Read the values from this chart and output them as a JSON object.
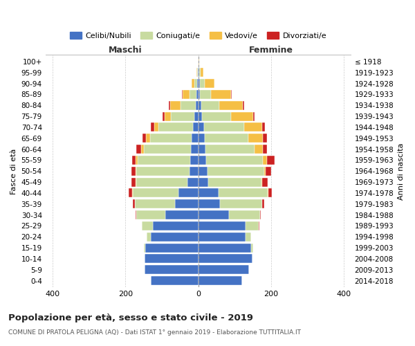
{
  "age_groups": [
    "0-4",
    "5-9",
    "10-14",
    "15-19",
    "20-24",
    "25-29",
    "30-34",
    "35-39",
    "40-44",
    "45-49",
    "50-54",
    "55-59",
    "60-64",
    "65-69",
    "70-74",
    "75-79",
    "80-84",
    "85-89",
    "90-94",
    "95-99",
    "100+"
  ],
  "birth_years": [
    "2014-2018",
    "2009-2013",
    "2004-2008",
    "1999-2003",
    "1994-1998",
    "1989-1993",
    "1984-1988",
    "1979-1983",
    "1974-1978",
    "1969-1973",
    "1964-1968",
    "1959-1963",
    "1954-1958",
    "1949-1953",
    "1944-1948",
    "1939-1943",
    "1934-1938",
    "1929-1933",
    "1924-1928",
    "1919-1923",
    "≤ 1918"
  ],
  "maschi_celibi": [
    130,
    148,
    148,
    145,
    130,
    125,
    90,
    65,
    55,
    30,
    25,
    22,
    20,
    18,
    15,
    10,
    8,
    5,
    3,
    1,
    0
  ],
  "maschi_coniugati": [
    0,
    0,
    0,
    5,
    12,
    30,
    80,
    110,
    125,
    140,
    145,
    145,
    130,
    115,
    95,
    65,
    40,
    20,
    8,
    2,
    0
  ],
  "maschi_vedovi": [
    0,
    0,
    0,
    0,
    0,
    0,
    0,
    0,
    1,
    2,
    3,
    5,
    8,
    10,
    12,
    18,
    30,
    18,
    8,
    2,
    0
  ],
  "maschi_divorziati": [
    0,
    0,
    0,
    0,
    0,
    0,
    2,
    5,
    10,
    12,
    10,
    10,
    12,
    10,
    8,
    5,
    3,
    2,
    0,
    0,
    0
  ],
  "femmine_celibi": [
    120,
    140,
    148,
    145,
    130,
    130,
    85,
    60,
    55,
    28,
    25,
    22,
    20,
    18,
    15,
    10,
    8,
    5,
    5,
    2,
    0
  ],
  "femmine_coniugati": [
    0,
    0,
    0,
    5,
    15,
    35,
    85,
    115,
    135,
    145,
    155,
    155,
    135,
    120,
    110,
    80,
    50,
    30,
    12,
    4,
    0
  ],
  "femmine_vedovi": [
    0,
    0,
    0,
    0,
    0,
    0,
    0,
    0,
    2,
    3,
    5,
    12,
    22,
    40,
    50,
    60,
    65,
    55,
    28,
    8,
    2
  ],
  "femmine_divorziati": [
    0,
    0,
    0,
    0,
    0,
    2,
    2,
    5,
    10,
    15,
    15,
    20,
    12,
    10,
    8,
    5,
    3,
    2,
    0,
    0,
    0
  ],
  "color_celibi": "#4472C4",
  "color_coniugati": "#c8dba0",
  "color_vedovi": "#f5bf45",
  "color_divorziati": "#cc2222",
  "xlim": [
    -420,
    420
  ],
  "xticks": [
    -400,
    -200,
    0,
    200,
    400
  ],
  "xticklabels": [
    "400",
    "200",
    "0",
    "200",
    "400"
  ],
  "title_main": "Popolazione per età, sesso e stato civile - 2019",
  "title_sub": "COMUNE DI PRATOLA PELIGNA (AQ) - Dati ISTAT 1° gennaio 2019 - Elaborazione TUTTITALIA.IT",
  "ylabel_left": "Fasce di età",
  "ylabel_right": "Anni di nascita",
  "label_maschi": "Maschi",
  "label_femmine": "Femmine",
  "legend_labels": [
    "Celibi/Nubili",
    "Coniugati/e",
    "Vedovi/e",
    "Divorziati/e"
  ],
  "bg_color": "#ffffff",
  "grid_color": "#cccccc"
}
